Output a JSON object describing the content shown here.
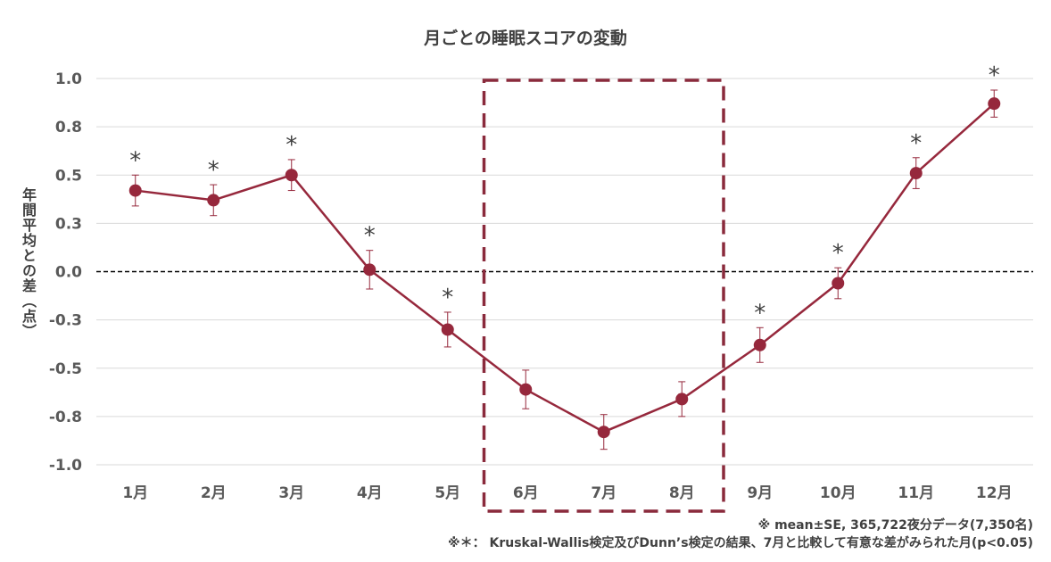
{
  "chart_data": {
    "type": "line",
    "title": "月ごとの睡眠スコアの変動",
    "xlabel": "",
    "ylabel": "年間平均との差（点）",
    "categories": [
      "1月",
      "2月",
      "3月",
      "4月",
      "5月",
      "6月",
      "7月",
      "8月",
      "9月",
      "10月",
      "11月",
      "12月"
    ],
    "series": [
      {
        "values": [
          0.42,
          0.37,
          0.5,
          0.01,
          -0.3,
          -0.61,
          -0.83,
          -0.66,
          -0.38,
          -0.06,
          0.51,
          0.87
        ],
        "error": [
          0.08,
          0.08,
          0.08,
          0.1,
          0.09,
          0.1,
          0.09,
          0.09,
          0.09,
          0.08,
          0.08,
          0.07
        ],
        "significant": [
          true,
          true,
          true,
          true,
          true,
          false,
          false,
          false,
          true,
          true,
          true,
          true
        ],
        "color": "#96283c"
      }
    ],
    "ylim": [
      -1.0,
      1.0
    ],
    "yticks": [
      1.0,
      0.75,
      0.5,
      0.25,
      0.0,
      -0.25,
      -0.5,
      -0.75,
      -1.0
    ],
    "ytick_labels": [
      "1.0",
      "0.8",
      "0.5",
      "0.3",
      "0.0",
      "-0.3",
      "-0.5",
      "-0.8",
      "-1.0"
    ],
    "reference_line": 0.0,
    "highlight_range": [
      "6月",
      "8月"
    ],
    "significance_marker": "*",
    "grid": true,
    "legend": "none"
  },
  "notes": [
    "※ mean±SE, 365,722夜分データ(7,350名)",
    "※＊：  Kruskal-Wallis検定及びDunn’s検定の結果、7月と比較して有意な差がみられた月(p<0.05)"
  ],
  "colors": {
    "series": "#96283c",
    "highlight_box": "#8a2a3c",
    "grid": "#d9d9d9",
    "text": "#595959"
  }
}
